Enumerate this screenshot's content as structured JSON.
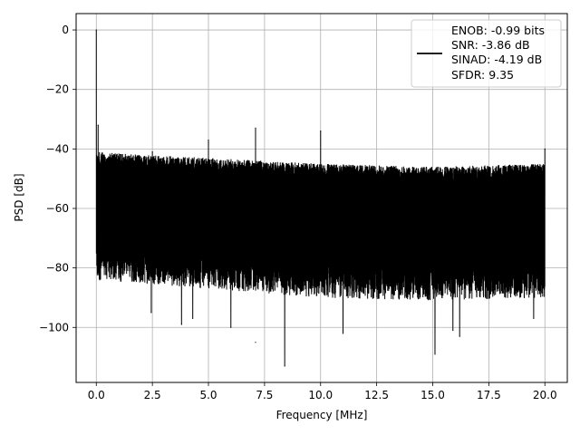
{
  "chart_data": {
    "type": "line",
    "xlabel": "Frequency [MHz]",
    "ylabel": "PSD [dB]",
    "xlim": [
      -0.9,
      21.0
    ],
    "ylim": [
      -118.5,
      5.5
    ],
    "xticks": [
      0.0,
      2.5,
      5.0,
      7.5,
      10.0,
      12.5,
      15.0,
      17.5,
      20.0
    ],
    "xtick_labels": [
      "0.0",
      "2.5",
      "5.0",
      "7.5",
      "10.0",
      "12.5",
      "15.0",
      "17.5",
      "20.0"
    ],
    "yticks": [
      0,
      -20,
      -40,
      -60,
      -80,
      -100
    ],
    "ytick_labels": [
      "0",
      "−20",
      "−40",
      "−60",
      "−80",
      "−100"
    ],
    "grid": true,
    "legend_position": "top-right",
    "line_color": "#000000",
    "series": [
      {
        "name": "ENOB: -0.99 bits\nSNR: -3.86 dB\nSINAD: -4.19 dB\nSFDR: 9.35",
        "legend_lines": [
          "ENOB: -0.99 bits",
          "SNR: -3.86 dB",
          "SINAD: -4.19 dB",
          "SFDR: 9.35"
        ],
        "x_range": [
          0.0,
          20.0
        ],
        "noise_envelope": {
          "upper": [
            [
              0.0,
              -41
            ],
            [
              2.0,
              -42
            ],
            [
              5.0,
              -43
            ],
            [
              10.0,
              -45
            ],
            [
              15.0,
              -46
            ],
            [
              20.0,
              -45
            ]
          ],
          "lower_typical": [
            [
              0.0,
              -80
            ],
            [
              5.0,
              -83
            ],
            [
              10.0,
              -86
            ],
            [
              15.0,
              -87
            ],
            [
              20.0,
              -86
            ]
          ]
        },
        "peaks": [
          {
            "x": 0.0,
            "y": 0
          },
          {
            "x": 0.08,
            "y": -32
          },
          {
            "x": 2.5,
            "y": -41
          },
          {
            "x": 5.0,
            "y": -37
          },
          {
            "x": 7.1,
            "y": -33
          },
          {
            "x": 10.0,
            "y": -34
          },
          {
            "x": 20.0,
            "y": -40
          }
        ],
        "dips": [
          {
            "x": 0.15,
            "y": -84
          },
          {
            "x": 2.45,
            "y": -95
          },
          {
            "x": 3.8,
            "y": -99
          },
          {
            "x": 4.3,
            "y": -97
          },
          {
            "x": 6.0,
            "y": -100
          },
          {
            "x": 7.1,
            "y": -105
          },
          {
            "x": 8.4,
            "y": -113
          },
          {
            "x": 11.0,
            "y": -102
          },
          {
            "x": 15.1,
            "y": -109
          },
          {
            "x": 15.9,
            "y": -101
          },
          {
            "x": 16.2,
            "y": -103
          },
          {
            "x": 19.5,
            "y": -97
          }
        ]
      }
    ]
  }
}
